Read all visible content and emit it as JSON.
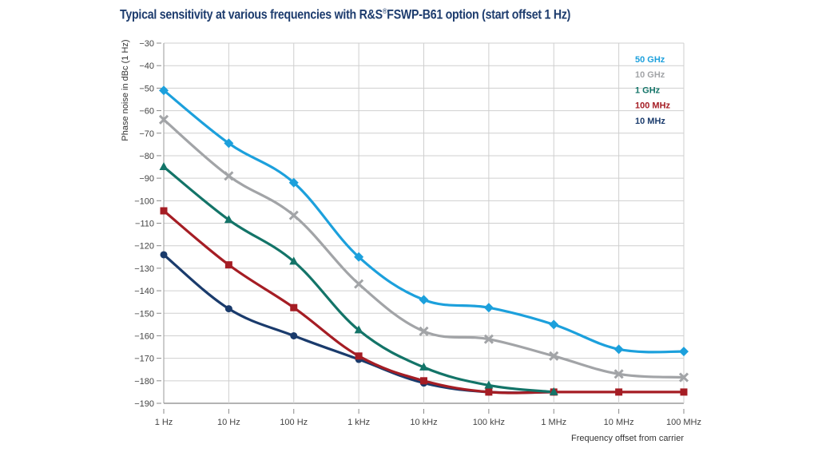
{
  "chart_data": {
    "type": "line",
    "title_main": "Typical sensitivity at various frequencies with R&S",
    "title_reg": "®",
    "title_rest": "FSWP-B61 option (start offset 1 Hz)",
    "xlabel": "Frequency offset from carrier",
    "ylabel": "Phase noise in dBc (1 Hz)",
    "x_categories": [
      "1 Hz",
      "10 Hz",
      "100 Hz",
      "1 kHz",
      "10 kHz",
      "100 kHz",
      "1 MHz",
      "10 MHz",
      "100 MHz"
    ],
    "x_scale": "log10 (decades)",
    "ylim": [
      -190,
      -30
    ],
    "y_ticks": [
      -30,
      -40,
      -50,
      -60,
      -70,
      -80,
      -90,
      -100,
      -110,
      -120,
      -130,
      -140,
      -150,
      -160,
      -170,
      -180,
      -190
    ],
    "grid": true,
    "legend_position": "top-right",
    "series": [
      {
        "name": "50 GHz",
        "color": "#1ca0dc",
        "marker": "diamond",
        "values": [
          -51,
          -74.5,
          -92,
          -125,
          -144,
          -147.5,
          -155,
          -166,
          -167
        ]
      },
      {
        "name": "10 GHz",
        "color": "#a2a4a7",
        "marker": "x",
        "values": [
          -64,
          -89,
          -106.5,
          -137,
          -158,
          -161.5,
          -169,
          -177,
          -178.5
        ]
      },
      {
        "name": "1 GHz",
        "color": "#137468",
        "marker": "triangle",
        "values": [
          -85,
          -108.5,
          -127,
          -157.5,
          -174,
          -182,
          -185,
          null,
          null
        ]
      },
      {
        "name": "100 MHz",
        "color": "#a51d24",
        "marker": "square",
        "values": [
          -104.5,
          -128.5,
          -147.5,
          -169,
          -180,
          -185,
          -185,
          -185,
          -185
        ]
      },
      {
        "name": "10 MHz",
        "color": "#1a3b6c",
        "marker": "circle",
        "values": [
          -124,
          -148,
          -160,
          -170.5,
          -181,
          -185,
          -185,
          null,
          null
        ]
      }
    ]
  }
}
